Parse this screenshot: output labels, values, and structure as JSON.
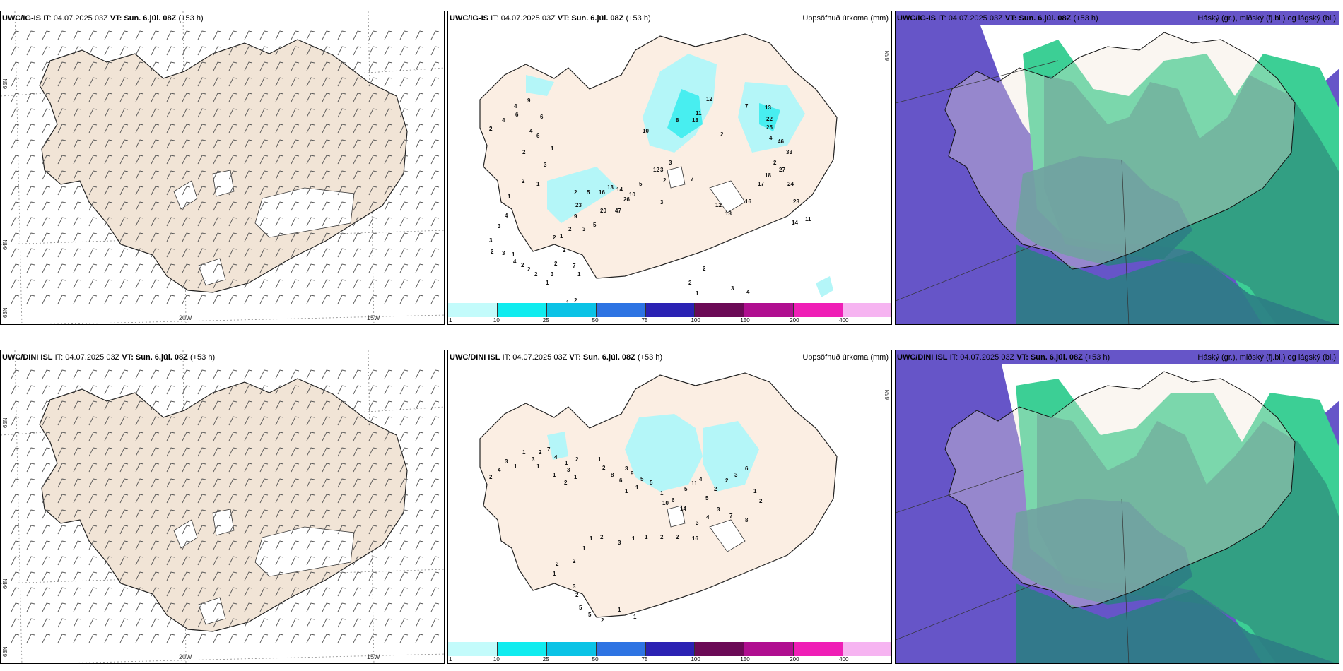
{
  "colors": {
    "land": "#f1e4d6",
    "land_plain": "#fbeee3",
    "coast": "#222222",
    "cloud_high_ocean": "#6655c8",
    "cloud_mid": "#2f8f7e",
    "cloud_low": "#2c7d84",
    "cloud_green": "#3ccf95",
    "precip_light": "#b4f6f8",
    "precip_mid": "#48eef0"
  },
  "scale": {
    "colors": [
      "#c3fbfb",
      "#10ecef",
      "#0bc3e6",
      "#2e74e3",
      "#2b22b3",
      "#6b0a56",
      "#b00e90",
      "#ef1eb6",
      "#f6b4f1"
    ],
    "ticks": [
      "1",
      "10",
      "25",
      "50",
      "75",
      "100",
      "150",
      "200",
      "400"
    ]
  },
  "rows": [
    {
      "source": "UWC/IG-IS",
      "it_label": "IT: 04.07.2025 03Z",
      "vt_label": "VT:",
      "vt": "Sun. 6.júl. 08Z",
      "lead": "(+53 h)",
      "precip_title": "Uppsöfnuð úrkoma (mm)",
      "cloud_title": "Háský (gr.), miðský (fj.bl.) og lágský (bl.)",
      "axis": {
        "lon_a": "20W",
        "lon_b": "15W",
        "lat_a": "65N",
        "lat_b": "64N",
        "lat_c": "63N",
        "lat_d": "65N"
      },
      "precip_values": [
        "2",
        "4",
        "6",
        "9",
        "4",
        "6",
        "4",
        "6",
        "2",
        "1",
        "3",
        "1",
        "10",
        "8",
        "18",
        "11",
        "12",
        "2",
        "7",
        "13",
        "22",
        "25",
        "4",
        "46",
        "33",
        "27",
        "24",
        "23",
        "14",
        "11",
        "2",
        "18",
        "17",
        "16",
        "13",
        "12",
        "7",
        "3",
        "3",
        "2",
        "12",
        "5",
        "10",
        "14",
        "26",
        "47",
        "3",
        "23",
        "2",
        "5",
        "16",
        "13",
        "9",
        "20",
        "5",
        "3",
        "2",
        "1",
        "2",
        "2",
        "1",
        "4",
        "3",
        "3",
        "2",
        "3",
        "1",
        "4",
        "2",
        "2",
        "2",
        "1",
        "3",
        "2",
        "2",
        "7",
        "1",
        "1",
        "2",
        "2",
        "1",
        "2",
        "1",
        "2",
        "3",
        "4",
        "2"
      ]
    },
    {
      "source": "UWC/DINI ISL",
      "it_label": "IT: 04.07.2025 03Z",
      "vt_label": "VT:",
      "vt": "Sun. 6.júl. 08Z",
      "lead": "(+53 h)",
      "precip_title": "Uppsöfnuð úrkoma (mm)",
      "cloud_title": "Háský (gr.), miðský (fj.bl.) og lágský (bl.)",
      "axis": {
        "lon_a": "20W",
        "lon_b": "15W",
        "lat_a": "65N",
        "lat_b": "64N",
        "lat_c": "63N",
        "lat_d": "65N"
      },
      "precip_values": [
        "2",
        "4",
        "3",
        "1",
        "1",
        "3",
        "1",
        "2",
        "7",
        "4",
        "1",
        "1",
        "2",
        "1",
        "3",
        "2",
        "1",
        "2",
        "8",
        "6",
        "3",
        "9",
        "1",
        "1",
        "5",
        "5",
        "1",
        "10",
        "6",
        "14",
        "5",
        "11",
        "4",
        "5",
        "2",
        "2",
        "3",
        "6",
        "1",
        "2",
        "8",
        "7",
        "3",
        "4",
        "3",
        "16",
        "2",
        "2",
        "1",
        "1",
        "3",
        "2",
        "1",
        "1",
        "2",
        "2",
        "1",
        "3",
        "2",
        "5",
        "5",
        "2",
        "1",
        "1"
      ]
    }
  ]
}
